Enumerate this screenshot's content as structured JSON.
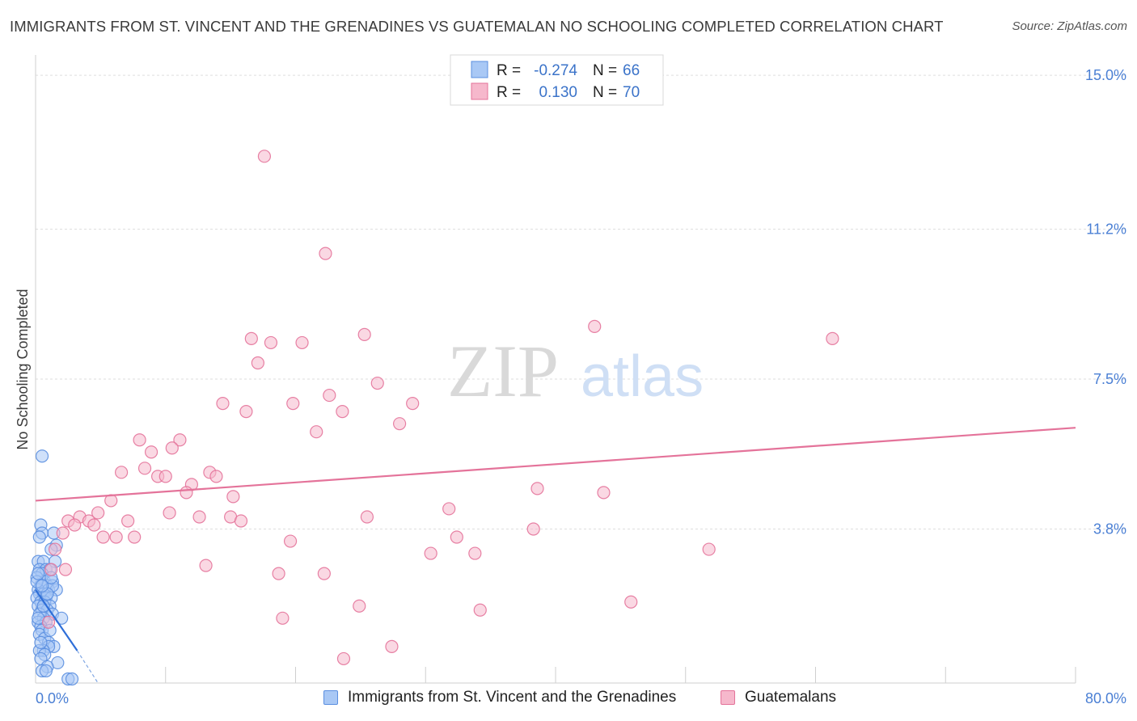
{
  "title": "IMMIGRANTS FROM ST. VINCENT AND THE GRENADINES VS GUATEMALAN NO SCHOOLING COMPLETED CORRELATION CHART",
  "source": "Source: ZipAtlas.com",
  "colors": {
    "blue": "#5b8fe0",
    "blue_fill": "#a9c8f5",
    "pink": "#e4739a",
    "pink_fill": "#f6b8cc",
    "tick": "#4a7fd4"
  },
  "chart_data": {
    "type": "scatter",
    "title": "IMMIGRANTS FROM ST. VINCENT AND THE GRENADINES VS GUATEMALAN NO SCHOOLING COMPLETED CORRELATION CHART",
    "xlabel": "",
    "ylabel": "No Schooling Completed",
    "xlim": [
      0,
      80
    ],
    "ylim": [
      0,
      15.5
    ],
    "x_tick_labels": [
      "0.0%",
      "80.0%"
    ],
    "y_ticks": [
      3.8,
      7.5,
      11.2,
      15.0
    ],
    "y_tick_labels": [
      "3.8%",
      "7.5%",
      "11.2%",
      "15.0%"
    ],
    "grid": true,
    "watermark": {
      "part1": "ZIP",
      "part2": "atlas"
    },
    "legend_stats": [
      {
        "r_label": "R =",
        "r_value": "-0.274",
        "n_label": "N =",
        "n_value": "66"
      },
      {
        "r_label": "R =",
        "r_value": "0.130",
        "n_label": "N =",
        "n_value": "70"
      }
    ],
    "series": [
      {
        "name": "Immigrants from St. Vincent and the Grenadines",
        "color": "blue",
        "trend": {
          "x": [
            0.0,
            3.2
          ],
          "y": [
            2.3,
            0.8
          ]
        },
        "trend_dashed": {
          "x": [
            3.2,
            4.8
          ],
          "y": [
            0.8,
            0.0
          ]
        },
        "points": [
          [
            0.5,
            5.6
          ],
          [
            0.4,
            3.9
          ],
          [
            0.5,
            3.7
          ],
          [
            0.3,
            3.6
          ],
          [
            1.4,
            3.7
          ],
          [
            1.6,
            3.4
          ],
          [
            1.2,
            3.3
          ],
          [
            0.2,
            3.0
          ],
          [
            0.6,
            3.0
          ],
          [
            1.5,
            3.0
          ],
          [
            0.3,
            2.8
          ],
          [
            0.8,
            2.8
          ],
          [
            1.1,
            2.8
          ],
          [
            0.5,
            2.7
          ],
          [
            0.1,
            2.6
          ],
          [
            0.7,
            2.5
          ],
          [
            1.3,
            2.5
          ],
          [
            0.4,
            2.4
          ],
          [
            0.9,
            2.4
          ],
          [
            0.2,
            2.3
          ],
          [
            1.0,
            2.3
          ],
          [
            1.6,
            2.3
          ],
          [
            0.3,
            2.2
          ],
          [
            0.6,
            2.2
          ],
          [
            0.1,
            2.1
          ],
          [
            0.8,
            2.1
          ],
          [
            1.2,
            2.1
          ],
          [
            0.4,
            2.0
          ],
          [
            0.7,
            2.0
          ],
          [
            0.2,
            1.9
          ],
          [
            1.1,
            1.9
          ],
          [
            0.5,
            1.8
          ],
          [
            0.9,
            1.8
          ],
          [
            0.3,
            1.7
          ],
          [
            1.3,
            1.7
          ],
          [
            0.6,
            1.6
          ],
          [
            2.0,
            1.6
          ],
          [
            0.2,
            1.5
          ],
          [
            0.8,
            1.5
          ],
          [
            0.4,
            1.4
          ],
          [
            0.5,
            1.3
          ],
          [
            0.3,
            1.2
          ],
          [
            0.7,
            1.1
          ],
          [
            1.0,
            1.0
          ],
          [
            1.4,
            0.9
          ],
          [
            1.0,
            0.9
          ],
          [
            0.6,
            0.8
          ],
          [
            0.3,
            0.8
          ],
          [
            0.7,
            0.7
          ],
          [
            0.4,
            0.6
          ],
          [
            1.7,
            0.5
          ],
          [
            0.9,
            0.4
          ],
          [
            0.5,
            0.3
          ],
          [
            0.8,
            0.3
          ],
          [
            2.5,
            0.1
          ],
          [
            2.8,
            0.1
          ],
          [
            0.1,
            2.5
          ],
          [
            0.2,
            2.7
          ],
          [
            1.3,
            2.4
          ],
          [
            0.6,
            1.9
          ],
          [
            1.1,
            1.3
          ],
          [
            0.4,
            1.0
          ],
          [
            0.2,
            1.6
          ],
          [
            1.2,
            2.6
          ],
          [
            0.9,
            2.2
          ],
          [
            0.5,
            2.4
          ]
        ]
      },
      {
        "name": "Guatemalans",
        "color": "pink",
        "trend": {
          "x": [
            0.0,
            80.0
          ],
          "y": [
            4.5,
            6.3
          ]
        },
        "points": [
          [
            17.6,
            13.0
          ],
          [
            22.3,
            10.6
          ],
          [
            43.0,
            8.8
          ],
          [
            61.3,
            8.5
          ],
          [
            16.6,
            8.5
          ],
          [
            18.1,
            8.4
          ],
          [
            20.5,
            8.4
          ],
          [
            25.3,
            8.6
          ],
          [
            17.1,
            7.9
          ],
          [
            26.3,
            7.4
          ],
          [
            22.6,
            7.1
          ],
          [
            14.4,
            6.9
          ],
          [
            19.8,
            6.9
          ],
          [
            29.0,
            6.9
          ],
          [
            16.2,
            6.7
          ],
          [
            23.6,
            6.7
          ],
          [
            28.0,
            6.4
          ],
          [
            21.6,
            6.2
          ],
          [
            8.0,
            6.0
          ],
          [
            11.1,
            6.0
          ],
          [
            8.9,
            5.7
          ],
          [
            10.5,
            5.8
          ],
          [
            8.4,
            5.3
          ],
          [
            6.6,
            5.2
          ],
          [
            9.4,
            5.1
          ],
          [
            10.0,
            5.1
          ],
          [
            13.4,
            5.2
          ],
          [
            13.9,
            5.1
          ],
          [
            12.0,
            4.9
          ],
          [
            11.6,
            4.7
          ],
          [
            38.6,
            4.8
          ],
          [
            43.7,
            4.7
          ],
          [
            15.2,
            4.6
          ],
          [
            5.8,
            4.5
          ],
          [
            31.8,
            4.3
          ],
          [
            4.8,
            4.2
          ],
          [
            10.3,
            4.2
          ],
          [
            12.6,
            4.1
          ],
          [
            15.0,
            4.1
          ],
          [
            25.5,
            4.1
          ],
          [
            2.5,
            4.0
          ],
          [
            3.4,
            4.1
          ],
          [
            7.1,
            4.0
          ],
          [
            15.8,
            4.0
          ],
          [
            3.0,
            3.9
          ],
          [
            4.1,
            4.0
          ],
          [
            4.5,
            3.9
          ],
          [
            2.1,
            3.7
          ],
          [
            6.2,
            3.6
          ],
          [
            7.6,
            3.6
          ],
          [
            5.2,
            3.6
          ],
          [
            32.4,
            3.6
          ],
          [
            38.3,
            3.8
          ],
          [
            19.6,
            3.5
          ],
          [
            1.5,
            3.3
          ],
          [
            33.8,
            3.2
          ],
          [
            30.4,
            3.2
          ],
          [
            51.8,
            3.3
          ],
          [
            13.1,
            2.9
          ],
          [
            18.7,
            2.7
          ],
          [
            22.2,
            2.7
          ],
          [
            1.2,
            2.8
          ],
          [
            45.8,
            2.0
          ],
          [
            24.9,
            1.9
          ],
          [
            34.2,
            1.8
          ],
          [
            19.0,
            1.6
          ],
          [
            1.0,
            1.5
          ],
          [
            27.4,
            0.9
          ],
          [
            23.7,
            0.6
          ],
          [
            2.3,
            2.8
          ]
        ]
      }
    ]
  }
}
